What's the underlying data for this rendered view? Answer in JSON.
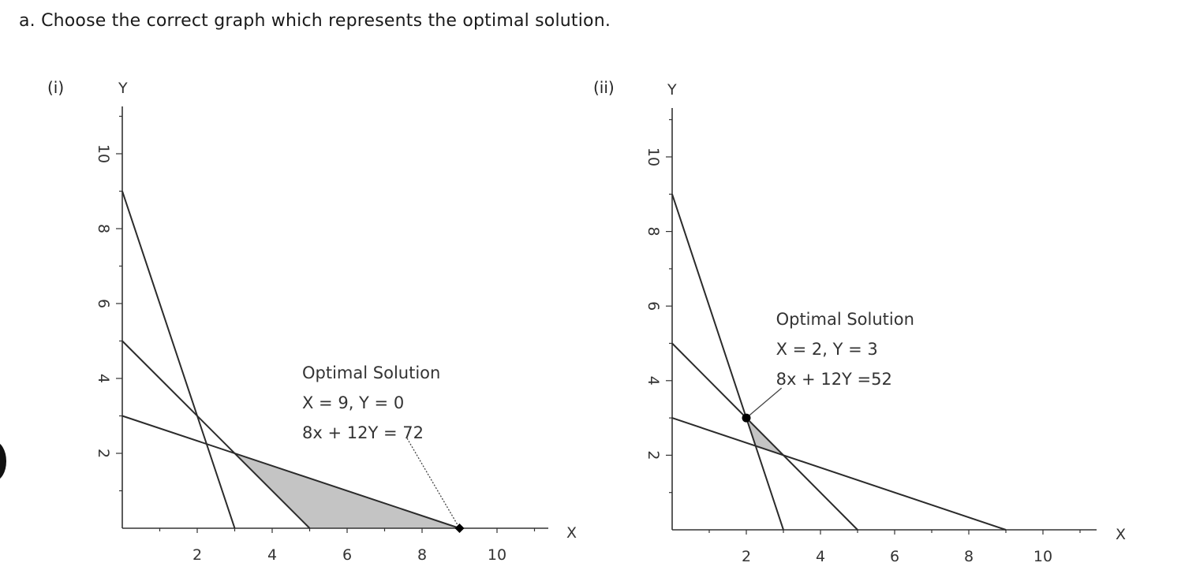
{
  "question": "a. Choose the correct graph which represents the optimal solution.",
  "colors": {
    "axis": "#333333",
    "line": "#2b2b2b",
    "feasible_fill": "#c4c4c4",
    "point": "#000000",
    "leader": "#444444"
  },
  "chart_data": [
    {
      "type": "line",
      "panel_label": "(i)",
      "xlabel": "X",
      "ylabel": "Y",
      "xlim": [
        0,
        11.5
      ],
      "ylim": [
        0,
        11
      ],
      "x_ticks": [
        2,
        4,
        6,
        8,
        10
      ],
      "y_ticks": [
        2,
        4,
        6,
        8,
        10
      ],
      "grid": false,
      "lines": [
        {
          "points": [
            [
              0,
              9
            ],
            [
              3,
              0
            ]
          ]
        },
        {
          "points": [
            [
              0,
              5
            ],
            [
              5,
              0
            ]
          ]
        },
        {
          "points": [
            [
              0,
              3
            ],
            [
              9,
              0
            ]
          ]
        }
      ],
      "feasible_region": [
        [
          3,
          2
        ],
        [
          5,
          0
        ],
        [
          9,
          0
        ]
      ],
      "optimal_point": [
        9,
        0
      ],
      "annotation": {
        "lines": [
          "Optimal Solution",
          "X = 9, Y = 0",
          "8x + 12Y = 72"
        ],
        "anchor": [
          4.8,
          4.0
        ],
        "leader_from": [
          7.6,
          2.4
        ],
        "leader_style": "dotted"
      }
    },
    {
      "type": "line",
      "panel_label": "(ii)",
      "xlabel": "X",
      "ylabel": "Y",
      "xlim": [
        0,
        11.5
      ],
      "ylim": [
        0,
        11
      ],
      "x_ticks": [
        2,
        4,
        6,
        8,
        10
      ],
      "y_ticks": [
        2,
        4,
        6,
        8,
        10
      ],
      "grid": false,
      "lines": [
        {
          "points": [
            [
              0,
              9
            ],
            [
              3,
              0
            ]
          ]
        },
        {
          "points": [
            [
              0,
              5
            ],
            [
              5,
              0
            ]
          ]
        },
        {
          "points": [
            [
              0,
              3
            ],
            [
              9,
              0
            ]
          ]
        }
      ],
      "feasible_region": [
        [
          2,
          3
        ],
        [
          2.25,
          2.25
        ],
        [
          3,
          2
        ]
      ],
      "optimal_point": [
        2,
        3
      ],
      "annotation": {
        "lines": [
          "Optimal Solution",
          "X = 2, Y = 3",
          "8x + 12Y =52"
        ],
        "anchor": [
          2.8,
          5.5
        ],
        "leader_from": [
          2.95,
          3.8
        ],
        "leader_style": "solid"
      }
    }
  ]
}
